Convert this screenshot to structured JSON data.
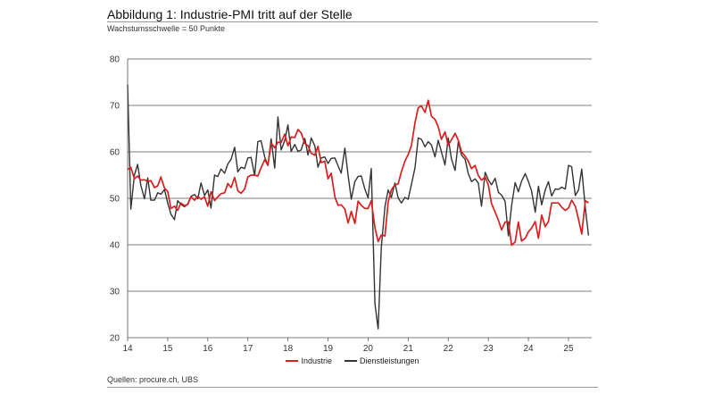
{
  "header": {
    "title": "Abbildung 1: Industrie-PMI tritt auf der Stelle",
    "subtitle": "Wachstumsschwelle = 50 Punkte"
  },
  "footer": {
    "source": "Quellen: procure.ch, UBS"
  },
  "chart_data": {
    "type": "line",
    "title": "Abbildung 1: Industrie-PMI tritt auf der Stelle",
    "subtitle": "Wachstumsschwelle = 50 Punkte",
    "xlabel": "",
    "ylabel": "",
    "xlim": [
      2014.0,
      2025.58
    ],
    "ylim": [
      20,
      80
    ],
    "yticks": [
      20,
      30,
      40,
      50,
      60,
      70,
      80
    ],
    "xticks": [
      {
        "value": 2014,
        "label": "14"
      },
      {
        "value": 2015,
        "label": "15"
      },
      {
        "value": 2016,
        "label": "16"
      },
      {
        "value": 2017,
        "label": "17"
      },
      {
        "value": 2018,
        "label": "18"
      },
      {
        "value": 2019,
        "label": "19"
      },
      {
        "value": 2020,
        "label": "20"
      },
      {
        "value": 2021,
        "label": "21"
      },
      {
        "value": 2022,
        "label": "22"
      },
      {
        "value": 2023,
        "label": "23"
      },
      {
        "value": 2024,
        "label": "24"
      },
      {
        "value": 2025,
        "label": "25"
      }
    ],
    "grid": "horizontal",
    "legend": "bottom-center",
    "series": [
      {
        "name": "Industrie",
        "color": "#d9201f",
        "points": [
          [
            2014.0,
            56.2
          ],
          [
            2014.08,
            56.7
          ],
          [
            2014.17,
            54.2
          ],
          [
            2014.25,
            54.8
          ],
          [
            2014.33,
            53.9
          ],
          [
            2014.42,
            54.0
          ],
          [
            2014.5,
            53.6
          ],
          [
            2014.58,
            53.8
          ],
          [
            2014.67,
            52.3
          ],
          [
            2014.75,
            52.7
          ],
          [
            2014.83,
            54.6
          ],
          [
            2014.92,
            52.2
          ],
          [
            2015.0,
            51.5
          ],
          [
            2015.08,
            47.8
          ],
          [
            2015.17,
            48.3
          ],
          [
            2015.25,
            47.4
          ],
          [
            2015.33,
            49.0
          ],
          [
            2015.42,
            48.4
          ],
          [
            2015.5,
            48.7
          ],
          [
            2015.58,
            50.3
          ],
          [
            2015.67,
            49.6
          ],
          [
            2015.75,
            50.4
          ],
          [
            2015.83,
            49.8
          ],
          [
            2015.92,
            50.3
          ],
          [
            2016.0,
            48.3
          ],
          [
            2016.08,
            51.4
          ],
          [
            2016.17,
            49.5
          ],
          [
            2016.25,
            50.3
          ],
          [
            2016.33,
            51.0
          ],
          [
            2016.42,
            51.2
          ],
          [
            2016.5,
            53.2
          ],
          [
            2016.58,
            52.3
          ],
          [
            2016.67,
            54.5
          ],
          [
            2016.75,
            51.6
          ],
          [
            2016.83,
            51.1
          ],
          [
            2016.92,
            52.0
          ],
          [
            2017.0,
            54.6
          ],
          [
            2017.08,
            55.0
          ],
          [
            2017.17,
            55.0
          ],
          [
            2017.25,
            54.8
          ],
          [
            2017.33,
            56.6
          ],
          [
            2017.42,
            58.3
          ],
          [
            2017.5,
            57.1
          ],
          [
            2017.58,
            61.9
          ],
          [
            2017.67,
            60.9
          ],
          [
            2017.75,
            62.1
          ],
          [
            2017.83,
            62.0
          ],
          [
            2017.92,
            63.8
          ],
          [
            2018.0,
            61.3
          ],
          [
            2018.08,
            63.2
          ],
          [
            2018.17,
            63.1
          ],
          [
            2018.25,
            64.8
          ],
          [
            2018.33,
            64.1
          ],
          [
            2018.42,
            61.8
          ],
          [
            2018.5,
            61.3
          ],
          [
            2018.58,
            59.7
          ],
          [
            2018.67,
            59.3
          ],
          [
            2018.75,
            61.2
          ],
          [
            2018.83,
            57.7
          ],
          [
            2018.92,
            58.0
          ],
          [
            2019.0,
            54.2
          ],
          [
            2019.08,
            55.4
          ],
          [
            2019.17,
            50.3
          ],
          [
            2019.25,
            48.5
          ],
          [
            2019.33,
            48.6
          ],
          [
            2019.42,
            47.7
          ],
          [
            2019.5,
            44.7
          ],
          [
            2019.58,
            47.2
          ],
          [
            2019.67,
            44.6
          ],
          [
            2019.75,
            49.4
          ],
          [
            2019.83,
            48.5
          ],
          [
            2019.92,
            47.8
          ],
          [
            2020.0,
            47.8
          ],
          [
            2020.08,
            49.5
          ],
          [
            2020.17,
            43.7
          ],
          [
            2020.25,
            40.7
          ],
          [
            2020.33,
            42.1
          ],
          [
            2020.42,
            41.9
          ],
          [
            2020.5,
            49.2
          ],
          [
            2020.58,
            51.8
          ],
          [
            2020.67,
            52.9
          ],
          [
            2020.75,
            53.1
          ],
          [
            2020.83,
            55.7
          ],
          [
            2020.92,
            58.0
          ],
          [
            2021.0,
            59.4
          ],
          [
            2021.08,
            61.3
          ],
          [
            2021.17,
            66.3
          ],
          [
            2021.25,
            69.5
          ],
          [
            2021.33,
            69.9
          ],
          [
            2021.42,
            68.5
          ],
          [
            2021.5,
            71.1
          ],
          [
            2021.58,
            67.7
          ],
          [
            2021.67,
            67.0
          ],
          [
            2021.75,
            65.4
          ],
          [
            2021.83,
            62.7
          ],
          [
            2021.92,
            64.3
          ],
          [
            2022.0,
            61.4
          ],
          [
            2022.08,
            62.6
          ],
          [
            2022.17,
            64.0
          ],
          [
            2022.25,
            62.5
          ],
          [
            2022.33,
            60.0
          ],
          [
            2022.42,
            59.1
          ],
          [
            2022.5,
            58.0
          ],
          [
            2022.58,
            56.4
          ],
          [
            2022.67,
            57.1
          ],
          [
            2022.75,
            54.9
          ],
          [
            2022.83,
            53.9
          ],
          [
            2022.92,
            54.6
          ],
          [
            2023.0,
            52.9
          ],
          [
            2023.08,
            48.9
          ],
          [
            2023.17,
            47.0
          ],
          [
            2023.25,
            45.3
          ],
          [
            2023.33,
            43.2
          ],
          [
            2023.42,
            44.9
          ],
          [
            2023.5,
            44.9
          ],
          [
            2023.58,
            39.9
          ],
          [
            2023.67,
            40.6
          ],
          [
            2023.75,
            44.9
          ],
          [
            2023.83,
            40.8
          ],
          [
            2023.92,
            41.4
          ],
          [
            2024.0,
            42.8
          ],
          [
            2024.08,
            43.6
          ],
          [
            2024.17,
            45.0
          ],
          [
            2024.25,
            41.4
          ],
          [
            2024.33,
            46.4
          ],
          [
            2024.42,
            43.9
          ],
          [
            2024.5,
            45.0
          ],
          [
            2024.58,
            49.0
          ],
          [
            2024.67,
            49.0
          ],
          [
            2024.75,
            49.0
          ],
          [
            2024.83,
            48.1
          ],
          [
            2024.92,
            47.4
          ],
          [
            2025.0,
            47.9
          ],
          [
            2025.08,
            49.6
          ],
          [
            2025.17,
            48.3
          ],
          [
            2025.25,
            45.5
          ],
          [
            2025.33,
            42.3
          ],
          [
            2025.42,
            49.5
          ],
          [
            2025.5,
            49.0
          ]
        ]
      },
      {
        "name": "Dienstleistungen",
        "color": "#333333",
        "points": [
          [
            2014.0,
            74.5
          ],
          [
            2014.08,
            47.7
          ],
          [
            2014.17,
            55.0
          ],
          [
            2014.25,
            57.3
          ],
          [
            2014.33,
            52.8
          ],
          [
            2014.42,
            49.9
          ],
          [
            2014.5,
            54.4
          ],
          [
            2014.58,
            49.6
          ],
          [
            2014.67,
            49.6
          ],
          [
            2014.75,
            51.2
          ],
          [
            2014.83,
            50.9
          ],
          [
            2014.92,
            51.9
          ],
          [
            2015.0,
            49.0
          ],
          [
            2015.08,
            46.6
          ],
          [
            2015.17,
            45.4
          ],
          [
            2015.25,
            49.5
          ],
          [
            2015.33,
            48.7
          ],
          [
            2015.42,
            48.2
          ],
          [
            2015.5,
            48.8
          ],
          [
            2015.58,
            50.4
          ],
          [
            2015.67,
            50.8
          ],
          [
            2015.75,
            49.9
          ],
          [
            2015.83,
            53.3
          ],
          [
            2015.92,
            50.6
          ],
          [
            2016.0,
            51.8
          ],
          [
            2016.08,
            47.9
          ],
          [
            2016.17,
            55.0
          ],
          [
            2016.25,
            54.7
          ],
          [
            2016.33,
            56.3
          ],
          [
            2016.42,
            55.4
          ],
          [
            2016.5,
            57.4
          ],
          [
            2016.58,
            58.4
          ],
          [
            2016.67,
            61.0
          ],
          [
            2016.75,
            55.7
          ],
          [
            2016.83,
            56.7
          ],
          [
            2016.92,
            56.4
          ],
          [
            2017.0,
            58.7
          ],
          [
            2017.08,
            58.8
          ],
          [
            2017.17,
            54.9
          ],
          [
            2017.25,
            62.2
          ],
          [
            2017.33,
            62.4
          ],
          [
            2017.42,
            58.9
          ],
          [
            2017.5,
            57.1
          ],
          [
            2017.58,
            62.8
          ],
          [
            2017.67,
            56.5
          ],
          [
            2017.75,
            67.5
          ],
          [
            2017.83,
            60.4
          ],
          [
            2017.92,
            62.4
          ],
          [
            2018.0,
            65.8
          ],
          [
            2018.08,
            60.1
          ],
          [
            2018.17,
            61.6
          ],
          [
            2018.25,
            60.1
          ],
          [
            2018.33,
            60.4
          ],
          [
            2018.42,
            62.9
          ],
          [
            2018.5,
            59.3
          ],
          [
            2018.58,
            63.0
          ],
          [
            2018.67,
            61.3
          ],
          [
            2018.75,
            56.7
          ],
          [
            2018.83,
            58.7
          ],
          [
            2018.92,
            58.9
          ],
          [
            2019.0,
            57.5
          ],
          [
            2019.08,
            58.6
          ],
          [
            2019.17,
            58.7
          ],
          [
            2019.25,
            57.0
          ],
          [
            2019.33,
            55.4
          ],
          [
            2019.42,
            60.8
          ],
          [
            2019.5,
            55.0
          ],
          [
            2019.58,
            49.8
          ],
          [
            2019.67,
            53.6
          ],
          [
            2019.75,
            54.7
          ],
          [
            2019.83,
            54.8
          ],
          [
            2019.92,
            52.0
          ],
          [
            2020.0,
            50.1
          ],
          [
            2020.08,
            56.4
          ],
          [
            2020.17,
            27.3
          ],
          [
            2020.25,
            21.9
          ],
          [
            2020.33,
            39.3
          ],
          [
            2020.42,
            48.2
          ],
          [
            2020.5,
            51.8
          ],
          [
            2020.58,
            50.2
          ],
          [
            2020.67,
            53.3
          ],
          [
            2020.75,
            50.1
          ],
          [
            2020.83,
            49.0
          ],
          [
            2020.92,
            50.2
          ],
          [
            2021.0,
            49.8
          ],
          [
            2021.08,
            52.9
          ],
          [
            2021.17,
            56.6
          ],
          [
            2021.25,
            63.0
          ],
          [
            2021.33,
            62.7
          ],
          [
            2021.42,
            61.1
          ],
          [
            2021.5,
            62.2
          ],
          [
            2021.58,
            61.5
          ],
          [
            2021.67,
            58.9
          ],
          [
            2021.75,
            62.5
          ],
          [
            2021.83,
            60.0
          ],
          [
            2021.92,
            57.2
          ],
          [
            2022.0,
            63.0
          ],
          [
            2022.08,
            58.5
          ],
          [
            2022.17,
            56.0
          ],
          [
            2022.25,
            62.2
          ],
          [
            2022.33,
            59.3
          ],
          [
            2022.42,
            58.4
          ],
          [
            2022.5,
            55.3
          ],
          [
            2022.58,
            53.6
          ],
          [
            2022.67,
            54.2
          ],
          [
            2022.75,
            53.3
          ],
          [
            2022.83,
            48.3
          ],
          [
            2022.92,
            55.6
          ],
          [
            2023.0,
            54.0
          ],
          [
            2023.08,
            52.9
          ],
          [
            2023.17,
            54.3
          ],
          [
            2023.25,
            51.3
          ],
          [
            2023.33,
            50.7
          ],
          [
            2023.42,
            49.3
          ],
          [
            2023.5,
            41.9
          ],
          [
            2023.58,
            48.4
          ],
          [
            2023.67,
            53.4
          ],
          [
            2023.75,
            51.4
          ],
          [
            2023.83,
            53.7
          ],
          [
            2023.92,
            55.3
          ],
          [
            2024.0,
            53.6
          ],
          [
            2024.08,
            51.6
          ],
          [
            2024.17,
            47.0
          ],
          [
            2024.25,
            52.6
          ],
          [
            2024.33,
            48.6
          ],
          [
            2024.42,
            51.8
          ],
          [
            2024.5,
            53.6
          ],
          [
            2024.58,
            50.5
          ],
          [
            2024.67,
            52.0
          ],
          [
            2024.75,
            51.9
          ],
          [
            2024.83,
            52.4
          ],
          [
            2024.92,
            52.0
          ],
          [
            2025.0,
            57.1
          ],
          [
            2025.08,
            56.8
          ],
          [
            2025.17,
            50.6
          ],
          [
            2025.25,
            51.8
          ],
          [
            2025.33,
            56.3
          ],
          [
            2025.42,
            48.0
          ],
          [
            2025.5,
            42.0
          ]
        ]
      }
    ]
  }
}
